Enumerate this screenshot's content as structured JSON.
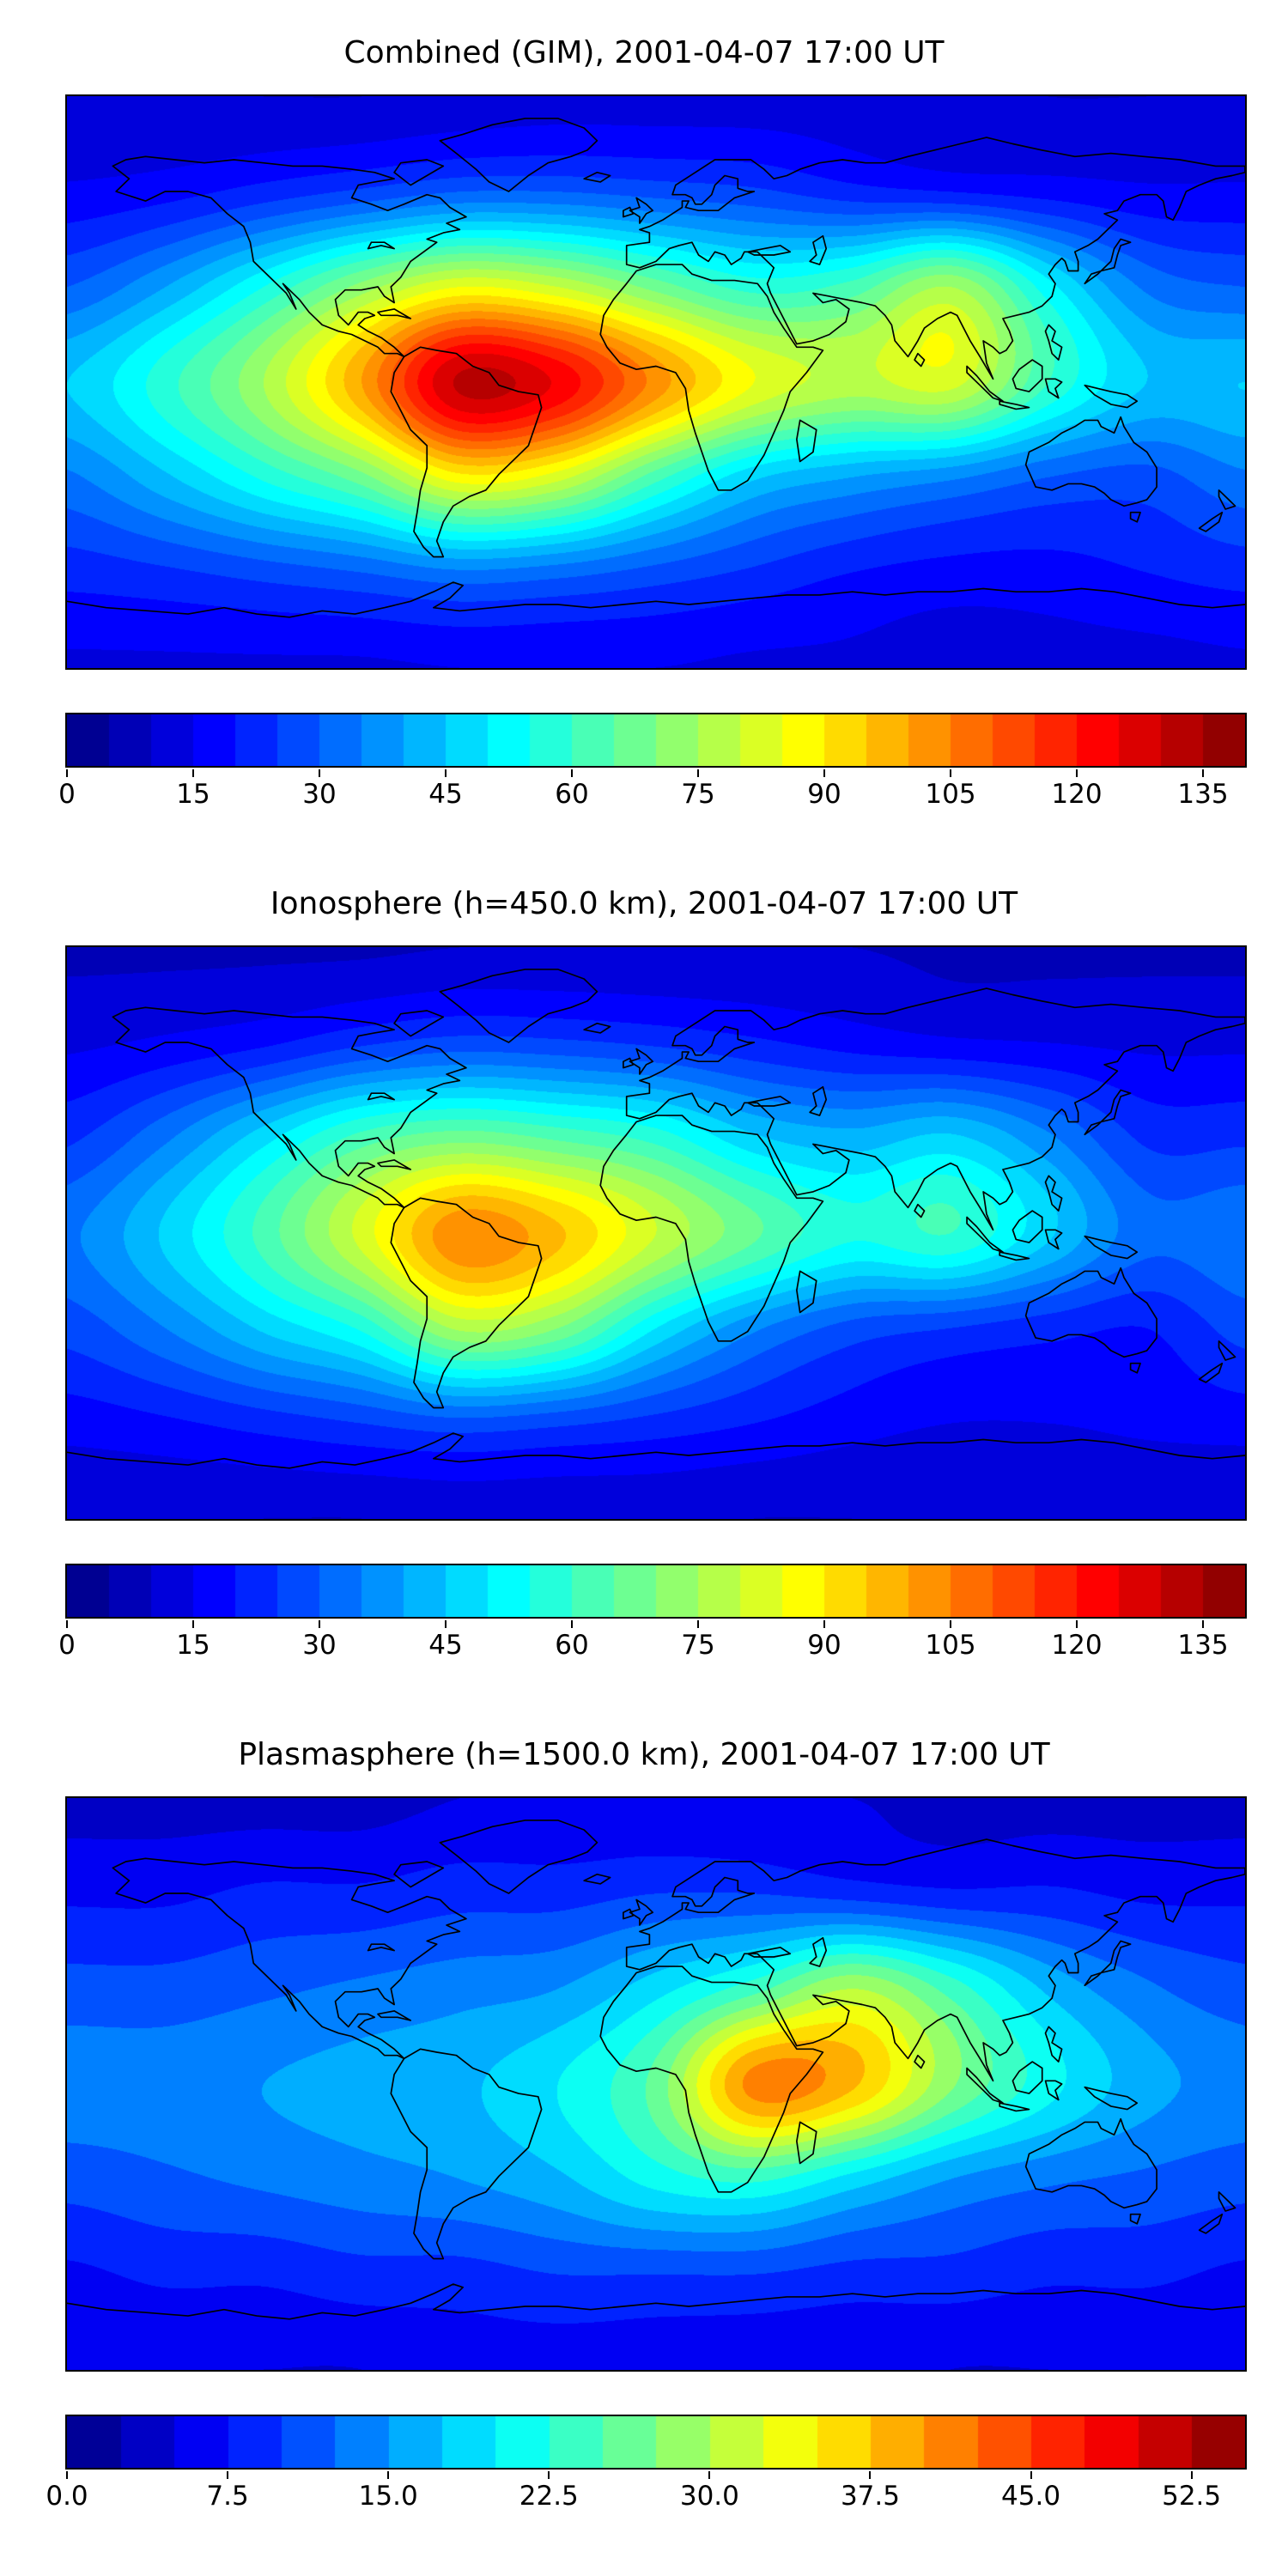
{
  "figure": {
    "background": "#ffffff",
    "n_subplots": 3,
    "colormap": "jet"
  },
  "chart_data": [
    {
      "type": "heatmap",
      "title": "Combined (GIM), 2001-04-07 17:00 UT",
      "colormap": "jet",
      "projection": "equirectangular world map with coastlines",
      "x_range": [
        -180,
        180
      ],
      "y_range": [
        -90,
        90
      ],
      "grid_lons": [
        -180,
        -150,
        -120,
        -90,
        -60,
        -30,
        0,
        30,
        60,
        90,
        120,
        150,
        180
      ],
      "grid_lats": [
        90,
        60,
        30,
        0,
        -30,
        -60,
        -90
      ],
      "values": [
        [
          10,
          10,
          10,
          10,
          11,
          12,
          12,
          12,
          12,
          11,
          10,
          10,
          10
        ],
        [
          16,
          18,
          22,
          26,
          30,
          30,
          28,
          26,
          22,
          20,
          18,
          16,
          16
        ],
        [
          30,
          40,
          55,
          72,
          85,
          80,
          68,
          58,
          62,
          75,
          52,
          34,
          30
        ],
        [
          45,
          58,
          75,
          100,
          131,
          124,
          103,
          85,
          78,
          82,
          60,
          45,
          45
        ],
        [
          34,
          44,
          56,
          68,
          88,
          82,
          62,
          46,
          40,
          36,
          30,
          28,
          34
        ],
        [
          22,
          24,
          27,
          30,
          34,
          32,
          28,
          24,
          20,
          18,
          18,
          20,
          22
        ],
        [
          14,
          14,
          14,
          14,
          15,
          15,
          15,
          14,
          14,
          13,
          13,
          13,
          14
        ]
      ],
      "vmin": 0,
      "vmax": 140,
      "contour_step": 5,
      "colorbar_ticks": [
        0,
        15,
        30,
        45,
        60,
        75,
        90,
        105,
        120,
        135
      ],
      "colorbar_tick_labels": [
        "0",
        "15",
        "30",
        "45",
        "60",
        "75",
        "90",
        "105",
        "120",
        "135"
      ]
    },
    {
      "type": "heatmap",
      "title": "Ionosphere (h=450.0 km), 2001-04-07 17:00 UT",
      "colormap": "jet",
      "projection": "equirectangular world map with coastlines",
      "x_range": [
        -180,
        180
      ],
      "y_range": [
        -90,
        90
      ],
      "grid_lons": [
        -180,
        -150,
        -120,
        -90,
        -60,
        -30,
        0,
        30,
        60,
        90,
        120,
        150,
        180
      ],
      "grid_lats": [
        90,
        60,
        30,
        0,
        -30,
        -60,
        -90
      ],
      "values": [
        [
          9,
          9,
          9,
          9,
          10,
          10,
          10,
          10,
          10,
          9,
          9,
          9,
          9
        ],
        [
          14,
          16,
          19,
          24,
          27,
          26,
          24,
          21,
          18,
          16,
          15,
          14,
          14
        ],
        [
          24,
          34,
          48,
          62,
          68,
          64,
          58,
          46,
          42,
          46,
          36,
          24,
          24
        ],
        [
          34,
          46,
          62,
          82,
          104,
          96,
          80,
          66,
          56,
          60,
          46,
          32,
          34
        ],
        [
          27,
          35,
          46,
          56,
          76,
          70,
          50,
          36,
          28,
          25,
          22,
          20,
          27
        ],
        [
          17,
          19,
          22,
          25,
          28,
          26,
          23,
          20,
          17,
          15,
          15,
          16,
          17
        ],
        [
          10,
          10,
          10,
          10,
          11,
          11,
          11,
          10,
          10,
          10,
          10,
          10,
          10
        ]
      ],
      "vmin": 0,
      "vmax": 140,
      "contour_step": 5,
      "colorbar_ticks": [
        0,
        15,
        30,
        45,
        60,
        75,
        90,
        105,
        120,
        135
      ],
      "colorbar_tick_labels": [
        "0",
        "15",
        "30",
        "45",
        "60",
        "75",
        "90",
        "105",
        "120",
        "135"
      ]
    },
    {
      "type": "heatmap",
      "title": "Plasmasphere (h=1500.0 km), 2001-04-07 17:00 UT",
      "colormap": "jet",
      "projection": "equirectangular world map with coastlines",
      "x_range": [
        -180,
        180
      ],
      "y_range": [
        -90,
        90
      ],
      "grid_lons": [
        -180,
        -150,
        -120,
        -90,
        -60,
        -30,
        0,
        30,
        60,
        90,
        120,
        150,
        180
      ],
      "grid_lats": [
        90,
        60,
        30,
        0,
        -30,
        -60,
        -90
      ],
      "values": [
        [
          4,
          4,
          4,
          4,
          5,
          5,
          5,
          5,
          5,
          4,
          4,
          4,
          4
        ],
        [
          7,
          7,
          8,
          8,
          9,
          9,
          10,
          10,
          9,
          8,
          8,
          7,
          7
        ],
        [
          11,
          11,
          12,
          13,
          14,
          15,
          19,
          24,
          30,
          24,
          17,
          13,
          11
        ],
        [
          14,
          14,
          15,
          16,
          17,
          20,
          26,
          41,
          38,
          28,
          21,
          16,
          14
        ],
        [
          11,
          12,
          13,
          14,
          15,
          17,
          21,
          23,
          19,
          15,
          13,
          12,
          11
        ],
        [
          7,
          8,
          8,
          9,
          9,
          10,
          10,
          10,
          9,
          9,
          8,
          8,
          7
        ],
        [
          5,
          5,
          5,
          5,
          6,
          6,
          6,
          6,
          6,
          5,
          5,
          5,
          5
        ]
      ],
      "vmin": 0,
      "vmax": 55,
      "contour_step": 2.5,
      "colorbar_ticks": [
        0,
        7.5,
        15,
        22.5,
        30,
        37.5,
        45,
        52.5
      ],
      "colorbar_tick_labels": [
        "0.0",
        "7.5",
        "15.0",
        "22.5",
        "30.0",
        "37.5",
        "45.0",
        "52.5"
      ]
    }
  ]
}
